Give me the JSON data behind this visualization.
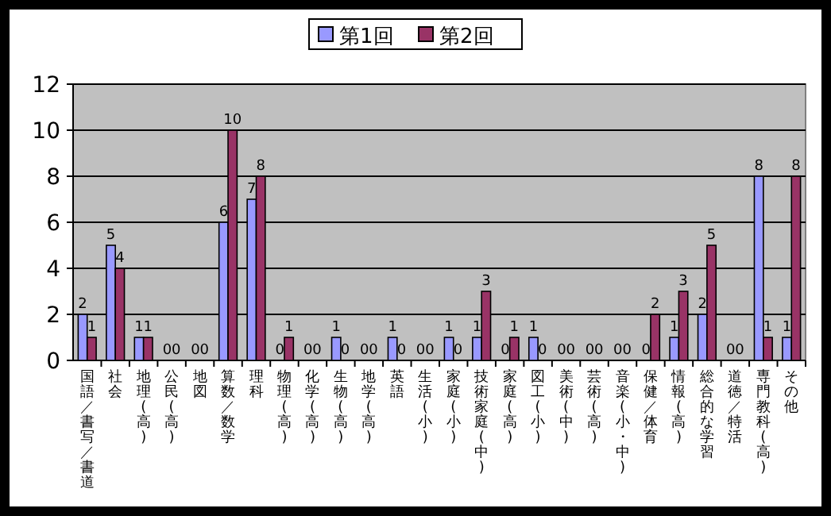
{
  "chart_data": {
    "type": "bar",
    "categories": [
      "国語／書写／書道",
      "社会",
      "地理(高)",
      "公民(高)",
      "地図",
      "算数／数学",
      "理科",
      "物理(高)",
      "化学(高)",
      "生物(高)",
      "地学(高)",
      "英語",
      "生活(小)",
      "家庭(小)",
      "技術家庭(中)",
      "家庭(高)",
      "図工(小)",
      "美術(中)",
      "芸術(高)",
      "音楽(小・中)",
      "保健／体育",
      "情報(高)",
      "総合的な学習",
      "道徳／特活",
      "専門教科(高)",
      "その他"
    ],
    "series": [
      {
        "name": "第1回",
        "color": "#9999ff",
        "values": [
          2,
          5,
          1,
          0,
          0,
          6,
          7,
          0,
          0,
          1,
          0,
          1,
          0,
          1,
          1,
          0,
          1,
          0,
          0,
          0,
          0,
          1,
          2,
          0,
          8,
          1
        ]
      },
      {
        "name": "第2回",
        "color": "#993366",
        "values": [
          1,
          4,
          1,
          0,
          0,
          10,
          8,
          1,
          0,
          0,
          0,
          0,
          0,
          0,
          3,
          1,
          0,
          0,
          0,
          0,
          2,
          3,
          5,
          0,
          1,
          8
        ]
      }
    ],
    "ylim": [
      0,
      12
    ],
    "yticks": [
      0,
      2,
      4,
      6,
      8,
      10,
      12
    ],
    "grid": "y",
    "legend": "top",
    "data_labels": true
  }
}
